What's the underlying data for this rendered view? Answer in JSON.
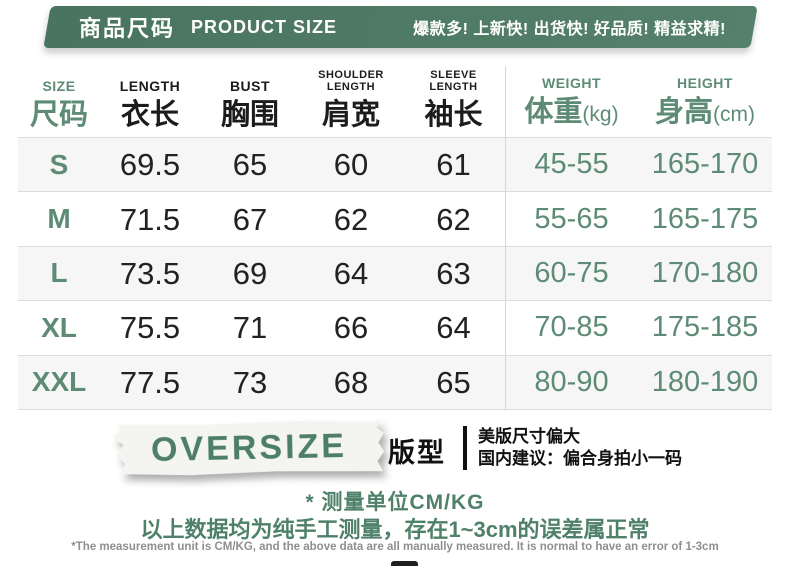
{
  "banner": {
    "title_zh": "商品尺码",
    "title_en": "PRODUCT SIZE",
    "slogan": "爆款多! 上新快! 出货快! 好品质! 精益求精!"
  },
  "chart_data": {
    "type": "table",
    "title": "商品尺码 PRODUCT SIZE",
    "columns": [
      {
        "en": "SIZE",
        "zh": "尺码",
        "unit": ""
      },
      {
        "en": "LENGTH",
        "zh": "衣长",
        "unit": ""
      },
      {
        "en": "BUST",
        "zh": "胸围",
        "unit": ""
      },
      {
        "en": "SHOULDER LENGTH",
        "zh": "肩宽",
        "unit": ""
      },
      {
        "en": "SLEEVE LENGTH",
        "zh": "袖长",
        "unit": ""
      },
      {
        "en": "WEIGHT",
        "zh": "体重",
        "unit": "(kg)"
      },
      {
        "en": "HEIGHT",
        "zh": "身高",
        "unit": "(cm)"
      }
    ],
    "rows": [
      {
        "size": "S",
        "length": "69.5",
        "bust": "65",
        "shoulder": "60",
        "sleeve": "61",
        "weight": "45-55",
        "height": "165-170"
      },
      {
        "size": "M",
        "length": "71.5",
        "bust": "67",
        "shoulder": "62",
        "sleeve": "62",
        "weight": "55-65",
        "height": "165-175"
      },
      {
        "size": "L",
        "length": "73.5",
        "bust": "69",
        "shoulder": "64",
        "sleeve": "63",
        "weight": "60-75",
        "height": "170-180"
      },
      {
        "size": "XL",
        "length": "75.5",
        "bust": "71",
        "shoulder": "66",
        "sleeve": "64",
        "weight": "70-85",
        "height": "175-185"
      },
      {
        "size": "XXL",
        "length": "77.5",
        "bust": "73",
        "shoulder": "68",
        "sleeve": "65",
        "weight": "80-90",
        "height": "180-190"
      }
    ]
  },
  "fit": {
    "tape_label": "OVERSIZE",
    "fit_label": "版型",
    "note_line1": "美版尺寸偏大",
    "note_line2": "国内建议：偏合身拍小一码"
  },
  "footer": {
    "unit_note": "* 测量单位CM/KG",
    "tolerance_note": "以上数据均为纯手工测量，存在1~3cm的误差属正常",
    "en_note": "*The measurement unit is CM/KG, and the above data are all manually measured. It is normal to have an error of 1-3cm"
  },
  "colors": {
    "banner_green_left": "#49745f",
    "banner_green_right": "#55806b",
    "text_green": "#5d8b76",
    "oversize_green": "#4d7f67",
    "row_stripe": "#f6f6f6",
    "row_border": "#dcdcdc",
    "note_gray": "#8f8f8f"
  }
}
